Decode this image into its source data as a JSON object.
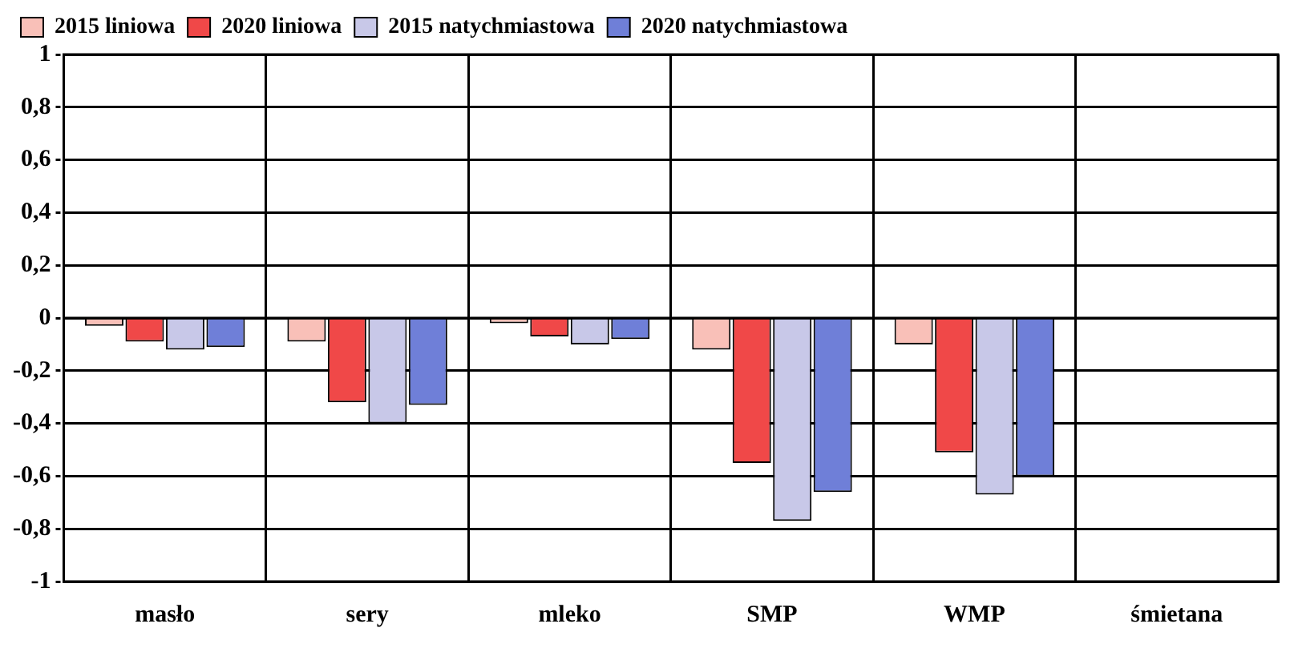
{
  "chart_data": {
    "type": "bar",
    "categories": [
      "masło",
      "sery",
      "mleko",
      "SMP",
      "WMP",
      "śmietana"
    ],
    "series": [
      {
        "name": "2015 liniowa",
        "color": "#f9c0b8",
        "values": [
          -0.03,
          -0.09,
          -0.02,
          -0.12,
          -0.1,
          null
        ]
      },
      {
        "name": "2020 liniowa",
        "color": "#f04848",
        "values": [
          -0.09,
          -0.32,
          -0.07,
          -0.55,
          -0.51,
          null
        ]
      },
      {
        "name": "2015 natychmiastowa",
        "color": "#c8c8e8",
        "values": [
          -0.12,
          -0.4,
          -0.1,
          -0.77,
          -0.67,
          null
        ]
      },
      {
        "name": "2020 natychmiastowa",
        "color": "#6f7fd8",
        "values": [
          -0.11,
          -0.33,
          -0.08,
          -0.66,
          -0.6,
          null
        ]
      }
    ],
    "ylim": [
      -1,
      1
    ],
    "yticks": [
      {
        "value": -1,
        "label": "-1"
      },
      {
        "value": -0.8,
        "label": "-0,8"
      },
      {
        "value": -0.6,
        "label": "-0,6"
      },
      {
        "value": -0.4,
        "label": "-0,4"
      },
      {
        "value": -0.2,
        "label": "-0,2"
      },
      {
        "value": 0,
        "label": "0"
      },
      {
        "value": 0.2,
        "label": "0,2"
      },
      {
        "value": 0.4,
        "label": "0,4"
      },
      {
        "value": 0.6,
        "label": "0,6"
      },
      {
        "value": 0.8,
        "label": "0,8"
      },
      {
        "value": 1,
        "label": "1"
      }
    ],
    "grid": true,
    "line_style": "dotted",
    "legend": "top left"
  }
}
